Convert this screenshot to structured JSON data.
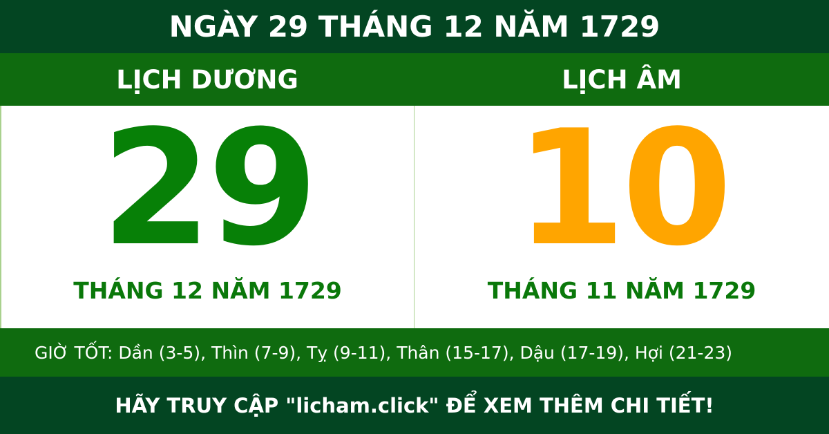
{
  "header": {
    "title": "NGÀY 29 THÁNG 12 NĂM 1729"
  },
  "solar": {
    "label": "LỊCH DƯƠNG",
    "day": "29",
    "month_year": "THÁNG 12 NĂM 1729",
    "color": "#078007"
  },
  "lunar": {
    "label": "LỊCH ÂM",
    "day": "10",
    "month_year": "THÁNG 11 NĂM 1729",
    "color": "#ffa500"
  },
  "good_hours": {
    "text": "GIỜ TỐT: Dần (3-5), Thìn (7-9), Tỵ (9-11), Thân (15-17), Dậu (17-19), Hợi (21-23)"
  },
  "footer": {
    "text": "HÃY TRUY CẬP \"licham.click\" ĐỂ XEM THÊM CHI TIẾT!"
  }
}
